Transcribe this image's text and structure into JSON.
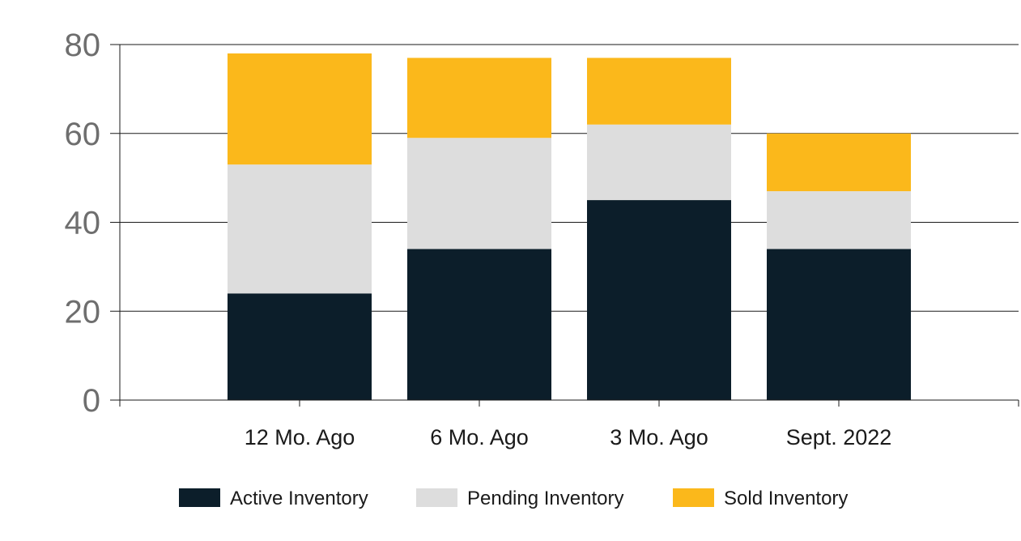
{
  "chart_data": {
    "type": "bar",
    "stacked": true,
    "title": "",
    "xlabel": "",
    "ylabel": "",
    "categories": [
      "12 Mo. Ago",
      "6 Mo. Ago",
      "3 Mo. Ago",
      "Sept. 2022"
    ],
    "series": [
      {
        "name": "Active Inventory",
        "color": "#0c1e2a",
        "values": [
          24,
          34,
          45,
          34
        ]
      },
      {
        "name": "Pending Inventory",
        "color": "#dddddd",
        "values": [
          29,
          25,
          17,
          13
        ]
      },
      {
        "name": "Sold Inventory",
        "color": "#fbb81b",
        "values": [
          25,
          18,
          15,
          13
        ]
      }
    ],
    "ylim": [
      0,
      80
    ],
    "yticks": [
      "0",
      "20",
      "40",
      "60",
      "80"
    ],
    "grid": true,
    "legend_position": "bottom"
  }
}
